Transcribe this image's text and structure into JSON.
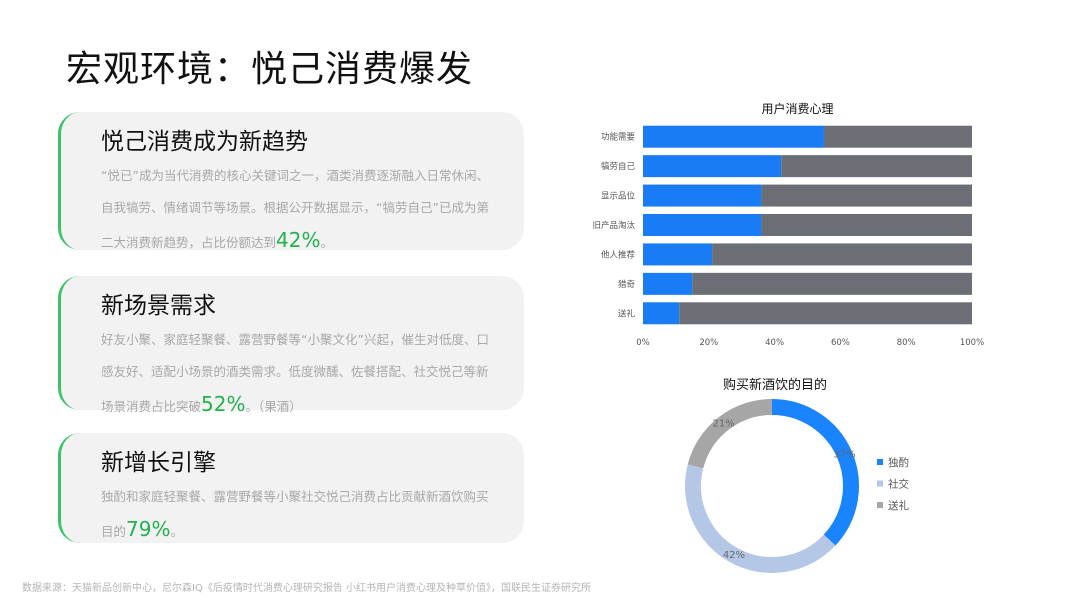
{
  "title": "宏观环境：悦己消费爆发",
  "cards": [
    {
      "heading": "悦己消费成为新趋势",
      "body": "“悦已”成为当代消费的核心关键词之一，酒类消费逐渐融入日常休闲、自我犒劳、情绪调节等场景。根据公开数据显示，“犒劳自己”已成为第二大消费新趋势，占比份额达到",
      "highlight": "42%",
      "tail": "。"
    },
    {
      "heading": "新场景需求",
      "body": "好友小聚、家庭轻聚餐、露营野餐等“小聚文化”兴起，催生对低度、口感友好、适配小场景的酒类需求。低度微醺、佐餐搭配、社交悦己等新场景消费占比突破",
      "highlight": "52%",
      "tail": "。（果酒）"
    },
    {
      "heading": "新增长引擎",
      "body": "独酌和家庭轻聚餐、露营野餐等小聚社交悦己消费占比贡献新酒饮购买目的",
      "highlight": "79%",
      "tail": "。"
    }
  ],
  "source": "数据来源：天猫新品创新中心，尼尔森IQ《后疫情时代消费心理研究报告 小红书用户消费心理及种草价值》，国联民生证券研究所",
  "chart_data": [
    {
      "type": "bar",
      "orientation": "horizontal",
      "stacked": true,
      "title": "用户消费心理",
      "categories": [
        "功能需要",
        "犒劳自己",
        "显示品位",
        "旧产品淘汰",
        "他人推荐",
        "猎奇",
        "送礼"
      ],
      "series": [
        {
          "color": "#1a7cf5",
          "values": [
            55,
            42,
            36,
            36,
            21,
            15,
            11
          ]
        },
        {
          "color": "#6b6f75",
          "values": [
            45,
            58,
            64,
            64,
            79,
            85,
            89
          ]
        }
      ],
      "xlim": [
        0,
        100
      ],
      "xticks": [
        {
          "value": 0,
          "label": "0%"
        },
        {
          "value": 20,
          "label": "20%"
        },
        {
          "value": 40,
          "label": "40%"
        },
        {
          "value": 60,
          "label": "60%"
        },
        {
          "value": 80,
          "label": "80%"
        },
        {
          "value": 100,
          "label": "100%"
        }
      ]
    },
    {
      "type": "donut",
      "title": "购买新酒饮的目的",
      "categories": [
        "独酌",
        "社交",
        "送礼"
      ],
      "values": [
        37,
        42,
        21
      ],
      "value_labels": [
        "37%",
        "42%",
        "21%"
      ],
      "colors": [
        "#1a84ff",
        "#b4c7e7",
        "#a6a6a6"
      ],
      "legend": "right"
    }
  ]
}
